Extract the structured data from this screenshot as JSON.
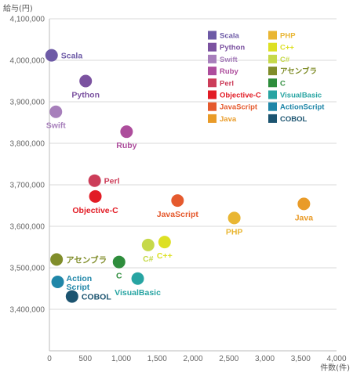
{
  "chart_data": {
    "type": "scatter",
    "xlabel": "件数(件)",
    "ylabel": "給与(円)",
    "xlim": [
      0,
      4000
    ],
    "ylim": [
      3300000,
      4100000
    ],
    "xticks": [
      0,
      500,
      1000,
      1500,
      2000,
      2500,
      3000,
      3500,
      4000
    ],
    "xtick_labels": [
      "0",
      "500",
      "1,000",
      "1,500",
      "2,000",
      "2,500",
      "3,000",
      "3,500",
      "4,000"
    ],
    "yticks": [
      3400000,
      3500000,
      3600000,
      3700000,
      3800000,
      3900000,
      4000000,
      4100000
    ],
    "ytick_labels": [
      "3,400,000",
      "3,500,000",
      "3,600,000",
      "3,700,000",
      "3,800,000",
      "3,900,000",
      "4,000,000",
      "4,100,000"
    ],
    "grid": "horizontal",
    "legend_position": "top-right",
    "series": [
      {
        "name": "Scala",
        "x": 30,
        "y": 4012000,
        "color": "#6d5aa6",
        "label_side": "right"
      },
      {
        "name": "Python",
        "x": 505,
        "y": 3950000,
        "color": "#7b52a0",
        "label_side": "below"
      },
      {
        "name": "Swift",
        "x": 90,
        "y": 3876000,
        "color": "#a77fbb",
        "label_side": "below"
      },
      {
        "name": "Ruby",
        "x": 1075,
        "y": 3828000,
        "color": "#ad4d9c",
        "label_side": "below"
      },
      {
        "name": "Perl",
        "x": 630,
        "y": 3710000,
        "color": "#cc3d59",
        "label_side": "right"
      },
      {
        "name": "Objective-C",
        "x": 640,
        "y": 3672000,
        "color": "#e21c25",
        "label_side": "below"
      },
      {
        "name": "JavaScript",
        "x": 1785,
        "y": 3662000,
        "color": "#e55a2e",
        "label_side": "below"
      },
      {
        "name": "Java",
        "x": 3545,
        "y": 3654000,
        "color": "#e99b28",
        "label_side": "below"
      },
      {
        "name": "PHP",
        "x": 2575,
        "y": 3620000,
        "color": "#e9b633",
        "label_side": "below"
      },
      {
        "name": "C++",
        "x": 1605,
        "y": 3562000,
        "color": "#dde024",
        "label_side": "below"
      },
      {
        "name": "C#",
        "x": 1375,
        "y": 3555000,
        "color": "#c6d94a",
        "label_side": "below"
      },
      {
        "name": "アセンブラ",
        "x": 100,
        "y": 3520000,
        "color": "#808d2a",
        "label_side": "right"
      },
      {
        "name": "C",
        "x": 970,
        "y": 3514000,
        "color": "#2e8d3c",
        "label_side": "below"
      },
      {
        "name": "VisualBasic",
        "x": 1230,
        "y": 3474000,
        "color": "#27a4a2",
        "label_side": "below"
      },
      {
        "name": "ActionScript",
        "x": 115,
        "y": 3466000,
        "color": "#1f86a8",
        "label_side": "right-two-line",
        "label_lines": [
          "Action",
          "Script"
        ]
      },
      {
        "name": "COBOL",
        "x": 315,
        "y": 3431000,
        "color": "#1c5470",
        "label_side": "right"
      }
    ],
    "legend_columns": [
      [
        "Scala",
        "Python",
        "Swift",
        "Ruby",
        "Perl",
        "Objective-C",
        "JavaScript",
        "Java"
      ],
      [
        "PHP",
        "C++",
        "C#",
        "アセンブラ",
        "C",
        "VisualBasic",
        "ActionScript",
        "COBOL"
      ]
    ]
  }
}
